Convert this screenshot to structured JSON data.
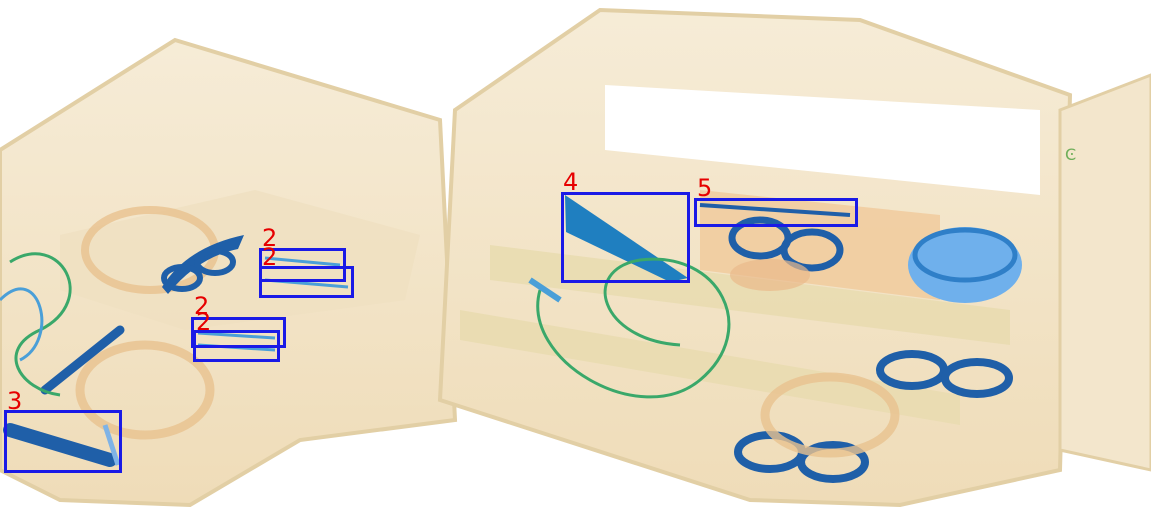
{
  "image": {
    "kind": "x-ray baggage scan",
    "palette": {
      "background": "#ffffff",
      "bag_fill": "#f3e6cc",
      "bag_edge": "#e2cfa5",
      "organic": "#e9b98a",
      "metal_blue": "#1f5fa8",
      "light_blue": "#7fb3e6",
      "green_wire": "#3aa86a",
      "box_color": "#1a1ae6",
      "label_color": "#e60000"
    }
  },
  "detections": [
    {
      "id": "2"
    },
    {
      "id": "2"
    },
    {
      "id": "2"
    },
    {
      "id": "2"
    },
    {
      "id": "3"
    },
    {
      "id": "4"
    },
    {
      "id": "5"
    }
  ]
}
